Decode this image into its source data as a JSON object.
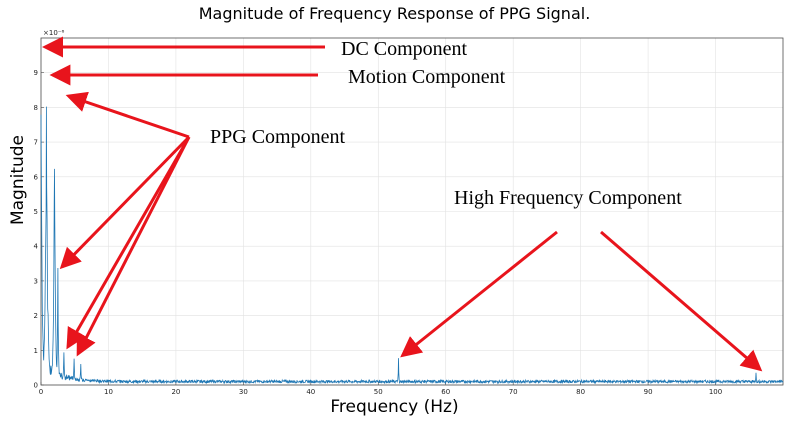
{
  "chart_data": {
    "type": "line",
    "title": "Magnitude of Frequency Response of PPG Signal.",
    "xlabel": "Frequency (Hz)",
    "ylabel": "Magnitude",
    "y_exponent_label": "×10⁻⁶",
    "xlim": [
      0,
      110
    ],
    "ylim": [
      0,
      10
    ],
    "x_ticks": [
      0,
      10,
      20,
      30,
      40,
      50,
      60,
      70,
      80,
      90,
      100
    ],
    "y_ticks": [
      0,
      1,
      2,
      3,
      4,
      5,
      6,
      7,
      8,
      9
    ],
    "grid": true,
    "series_color": "#1f77b4",
    "arrow_color": "#e8141c",
    "peaks": [
      {
        "x": 0.0,
        "y": 10.0,
        "width": 0.6
      },
      {
        "x": 0.8,
        "y": 8.8,
        "width": 0.7
      },
      {
        "x": 2.0,
        "y": 8.3,
        "width": 0.5
      },
      {
        "x": 2.5,
        "y": 3.4,
        "width": 0.35
      },
      {
        "x": 3.4,
        "y": 1.1,
        "width": 0.35
      },
      {
        "x": 4.9,
        "y": 0.9,
        "width": 0.3
      },
      {
        "x": 5.9,
        "y": 0.8,
        "width": 0.3
      },
      {
        "x": 53.0,
        "y": 0.85,
        "width": 0.25
      },
      {
        "x": 106.0,
        "y": 0.45,
        "width": 0.25
      }
    ],
    "annotations": [
      {
        "text": "DC Component",
        "target_x": 0.0,
        "target_y": 9.8
      },
      {
        "text": "Motion Component",
        "target_x": 0.8,
        "target_y": 8.8
      },
      {
        "text": "PPG Component",
        "target_x": 2.0,
        "target_y": 8.3
      },
      {
        "text": "High Frequency Component",
        "target_x": 53.0,
        "target_y": 0.85
      }
    ]
  }
}
